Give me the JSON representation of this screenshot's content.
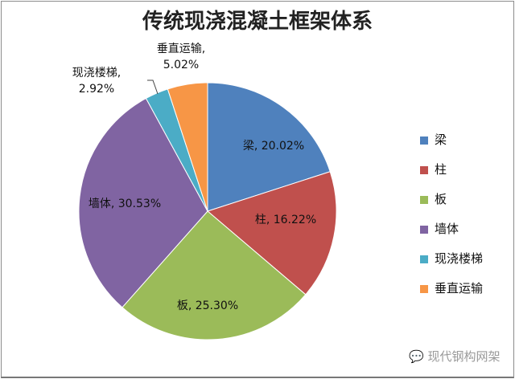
{
  "watermark": "现代钢构网架",
  "chart_data": {
    "type": "pie",
    "title": "传统现浇混凝土框架体系",
    "categories": [
      "梁",
      "柱",
      "板",
      "墙体",
      "现浇楼梯",
      "垂直运输"
    ],
    "values": [
      20.02,
      16.22,
      25.3,
      30.53,
      2.92,
      5.02
    ],
    "labels": [
      "梁, 20.02%",
      "柱, 16.22%",
      "板, 25.30%",
      "墙体, 30.53%",
      "现浇楼梯,\n2.92%",
      "垂直运输,\n5.02%"
    ],
    "colors": [
      "#4F81BD",
      "#C0504D",
      "#9BBB59",
      "#8064A2",
      "#4BACC6",
      "#F79646"
    ],
    "start": "top, clockwise",
    "legend_position": "right"
  }
}
